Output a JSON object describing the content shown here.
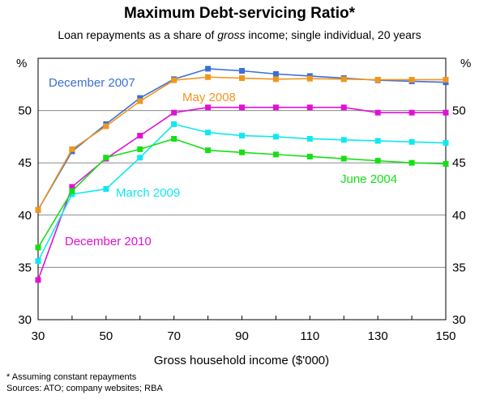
{
  "chart_data": {
    "type": "line",
    "title": "Maximum Debt-servicing Ratio*",
    "subtitle": {
      "before": "Loan repayments as a share of ",
      "emphasis": "gross",
      "after": " income; single individual, 20 years"
    },
    "xlabel": "Gross household income ($'000)",
    "ylabel_left": "%",
    "ylabel_right": "%",
    "x": [
      30,
      40,
      50,
      60,
      70,
      80,
      90,
      100,
      110,
      120,
      130,
      140,
      150
    ],
    "x_ticks": [
      30,
      50,
      70,
      90,
      110,
      130,
      150
    ],
    "y_ticks": [
      30,
      35,
      40,
      45,
      50
    ],
    "xlim": [
      30,
      150
    ],
    "ylim": [
      30,
      55
    ],
    "grid": "horizontal",
    "series": [
      {
        "name": "December 2007",
        "color": "#3b6fd6",
        "values": [
          40.5,
          46.1,
          48.7,
          51.2,
          53.0,
          54.0,
          53.8,
          53.5,
          53.3,
          53.1,
          52.9,
          52.8,
          52.7
        ]
      },
      {
        "name": "May 2008",
        "color": "#f0961e",
        "values": [
          40.5,
          46.3,
          48.5,
          50.9,
          52.9,
          53.2,
          53.1,
          53.0,
          53.05,
          53.0,
          52.95,
          52.95,
          52.95
        ]
      },
      {
        "name": "December 2010",
        "color": "#e010d8",
        "values": [
          33.8,
          42.7,
          45.4,
          47.6,
          49.8,
          50.3,
          50.3,
          50.3,
          50.3,
          50.3,
          49.8,
          49.8,
          49.8
        ]
      },
      {
        "name": "March 2009",
        "color": "#10e8f0",
        "values": [
          35.6,
          42.0,
          42.5,
          45.5,
          48.7,
          47.9,
          47.6,
          47.5,
          47.3,
          47.2,
          47.1,
          47.0,
          46.9
        ]
      },
      {
        "name": "June 2004",
        "color": "#14e014",
        "values": [
          36.9,
          42.3,
          45.5,
          46.3,
          47.3,
          46.2,
          46.0,
          45.8,
          45.6,
          45.4,
          45.2,
          45.0,
          44.9
        ]
      }
    ],
    "annotations": [
      "December 2007",
      "May 2008",
      "December 2010",
      "March 2009",
      "June 2004"
    ]
  },
  "footnotes": [
    "* Assuming constant repayments",
    "Sources: ATO; company websites; RBA"
  ]
}
